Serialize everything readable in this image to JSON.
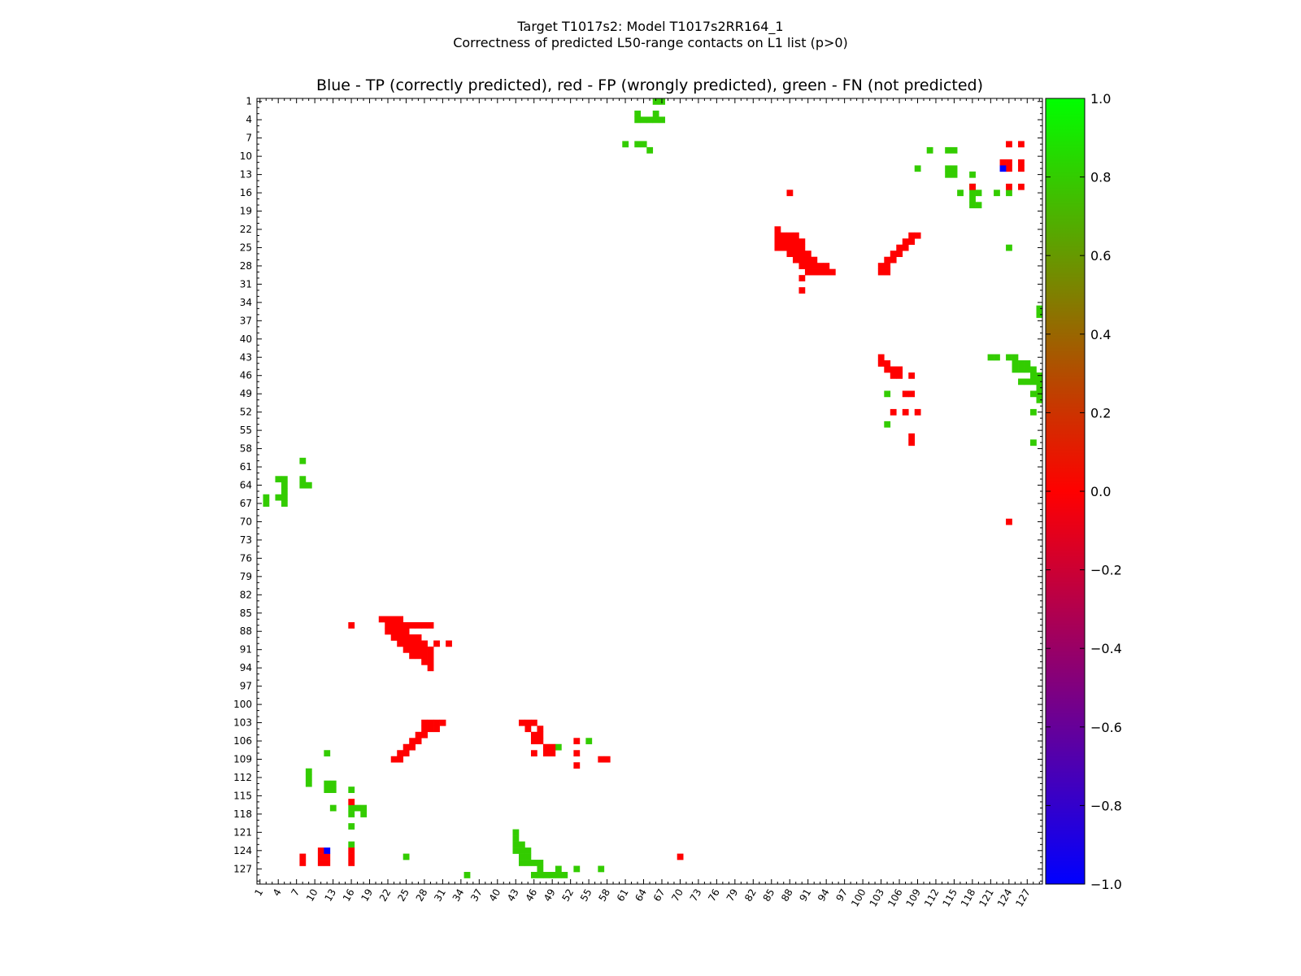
{
  "figure": {
    "title_line1": "Target T1017s2: Model T1017s2RR164_1",
    "title_line2": "Correctness of predicted L50-range contacts on L1 list (p>0)",
    "subtitle": "Blue - TP (correctly predicted), red - FP (wrongly predicted), green - FN (not predicted)"
  },
  "chart_data": {
    "type": "heatmap",
    "title": "Blue - TP (correctly predicted), red - FP (wrongly predicted), green - FN (not predicted)",
    "xlabel": "",
    "ylabel": "",
    "xlim": [
      0.5,
      129.5
    ],
    "ylim": [
      0.5,
      129.5
    ],
    "y_inverted": true,
    "x_tick_labels": [
      "1",
      "4",
      "7",
      "10",
      "13",
      "16",
      "19",
      "22",
      "25",
      "28",
      "31",
      "34",
      "37",
      "40",
      "43",
      "46",
      "49",
      "52",
      "55",
      "58",
      "61",
      "64",
      "67",
      "70",
      "73",
      "76",
      "79",
      "82",
      "85",
      "88",
      "91",
      "94",
      "97",
      "100",
      "103",
      "106",
      "109",
      "112",
      "115",
      "118",
      "121",
      "124",
      "127"
    ],
    "y_tick_labels": [
      "1",
      "4",
      "7",
      "10",
      "13",
      "16",
      "19",
      "22",
      "25",
      "28",
      "31",
      "34",
      "37",
      "40",
      "43",
      "46",
      "49",
      "52",
      "55",
      "58",
      "61",
      "64",
      "67",
      "70",
      "73",
      "76",
      "79",
      "82",
      "85",
      "88",
      "91",
      "94",
      "97",
      "100",
      "103",
      "106",
      "109",
      "112",
      "115",
      "118",
      "121",
      "124",
      "127"
    ],
    "colorbar": {
      "range": [
        -1.0,
        1.0
      ],
      "tick_labels": [
        "1.0",
        "0.8",
        "0.6",
        "0.4",
        "0.2",
        "0.0",
        "−0.2",
        "−0.4",
        "−0.6",
        "−0.8",
        "−1.0"
      ],
      "colormap": "brg",
      "color_bottom": "#0000ff",
      "color_middle": "#ff0000",
      "color_top": "#00ff00"
    },
    "categories": {
      "TP": {
        "value": -1.0,
        "color": "#0000ff"
      },
      "FP": {
        "value": 0.0,
        "color": "#ff0000"
      },
      "FN": {
        "value": 0.7,
        "color": "#33cc00"
      }
    },
    "cells": {
      "FP": [
        [
          87,
          16
        ],
        [
          87,
          27
        ],
        [
          87,
          28
        ],
        [
          87,
          29
        ],
        [
          88,
          22
        ],
        [
          88,
          23
        ],
        [
          88,
          24
        ],
        [
          88,
          25
        ],
        [
          89,
          23
        ],
        [
          89,
          24
        ],
        [
          89,
          25
        ],
        [
          89,
          26
        ],
        [
          89,
          27
        ],
        [
          90,
          24
        ],
        [
          90,
          25
        ],
        [
          90,
          26
        ],
        [
          90,
          27
        ],
        [
          90,
          28
        ],
        [
          90,
          30
        ],
        [
          90,
          32
        ],
        [
          91,
          25
        ],
        [
          91,
          26
        ],
        [
          91,
          27
        ],
        [
          91,
          28
        ],
        [
          91,
          29
        ],
        [
          92,
          26
        ],
        [
          92,
          27
        ],
        [
          92,
          28
        ],
        [
          92,
          29
        ],
        [
          93,
          28
        ],
        [
          93,
          29
        ],
        [
          94,
          29
        ],
        [
          103,
          28
        ],
        [
          103,
          29
        ],
        [
          103,
          30
        ],
        [
          103,
          31
        ],
        [
          104,
          28
        ],
        [
          104,
          29
        ],
        [
          104,
          30
        ],
        [
          105,
          27
        ],
        [
          105,
          28
        ],
        [
          106,
          26
        ],
        [
          106,
          27
        ],
        [
          107,
          25
        ],
        [
          107,
          26
        ],
        [
          108,
          24
        ],
        [
          108,
          25
        ],
        [
          109,
          23
        ],
        [
          109,
          24
        ],
        [
          116,
          16
        ],
        [
          124,
          11
        ],
        [
          124,
          16
        ],
        [
          125,
          8
        ],
        [
          125,
          11
        ],
        [
          125,
          12
        ],
        [
          125,
          16
        ],
        [
          126,
          8
        ],
        [
          126,
          11
        ],
        [
          126,
          12
        ],
        [
          126,
          16
        ],
        [
          103,
          44
        ],
        [
          103,
          45
        ],
        [
          103,
          46
        ],
        [
          104,
          45
        ],
        [
          104,
          47
        ],
        [
          105,
          46
        ],
        [
          105,
          47
        ],
        [
          106,
          46
        ],
        [
          106,
          47
        ],
        [
          106,
          53
        ],
        [
          107,
          48
        ],
        [
          108,
          48
        ],
        [
          108,
          53
        ],
        [
          109,
          57
        ],
        [
          109,
          58
        ],
        [
          110,
          53
        ],
        [
          86,
          21
        ],
        [
          86,
          22
        ],
        [
          86,
          23
        ],
        [
          86,
          24
        ],
        [
          87,
          22
        ],
        [
          87,
          23
        ],
        [
          87,
          24
        ],
        [
          87,
          25
        ],
        [
          87,
          26
        ],
        [
          107,
          49
        ],
        [
          108,
          49
        ],
        [
          108,
          46
        ],
        [
          125,
          70
        ],
        [
          8,
          124
        ],
        [
          8,
          126
        ],
        [
          11,
          123
        ],
        [
          11,
          124
        ],
        [
          11,
          126
        ],
        [
          12,
          124
        ],
        [
          12,
          126
        ],
        [
          15,
          118
        ],
        [
          15,
          124
        ],
        [
          15,
          126
        ],
        [
          16,
          88
        ],
        [
          22,
          86
        ],
        [
          23,
          86
        ],
        [
          24,
          86
        ],
        [
          25,
          86
        ],
        [
          23,
          87
        ],
        [
          23,
          88
        ],
        [
          23,
          89
        ],
        [
          24,
          87
        ],
        [
          24,
          88
        ],
        [
          24,
          89
        ],
        [
          24,
          90
        ],
        [
          25,
          87
        ],
        [
          25,
          88
        ],
        [
          25,
          89
        ],
        [
          25,
          90
        ],
        [
          26,
          88
        ],
        [
          26,
          89
        ],
        [
          26,
          90
        ],
        [
          26,
          91
        ],
        [
          27,
          89
        ],
        [
          27,
          90
        ],
        [
          27,
          91
        ],
        [
          27,
          92
        ],
        [
          28,
          90
        ],
        [
          28,
          91
        ],
        [
          28,
          92
        ],
        [
          28,
          93
        ],
        [
          28,
          94
        ],
        [
          29,
          91
        ],
        [
          29,
          92
        ],
        [
          29,
          93
        ],
        [
          29,
          94
        ],
        [
          29,
          95
        ],
        [
          30,
          90
        ],
        [
          32,
          90
        ],
        [
          23,
          109
        ],
        [
          23,
          108
        ],
        [
          24,
          107
        ],
        [
          24,
          108
        ],
        [
          25,
          106
        ],
        [
          25,
          107
        ],
        [
          26,
          105
        ],
        [
          26,
          106
        ],
        [
          27,
          104
        ],
        [
          27,
          105
        ],
        [
          28,
          103
        ],
        [
          28,
          104
        ],
        [
          29,
          103
        ],
        [
          29,
          104
        ],
        [
          43,
          103
        ],
        [
          44,
          103
        ],
        [
          44,
          104
        ],
        [
          45,
          104
        ],
        [
          45,
          105
        ],
        [
          45,
          106
        ],
        [
          46,
          105
        ],
        [
          46,
          106
        ],
        [
          46,
          108
        ],
        [
          49,
          107
        ],
        [
          49,
          108
        ],
        [
          52,
          105
        ],
        [
          52,
          107
        ],
        [
          52,
          109
        ],
        [
          56,
          108
        ],
        [
          57,
          108
        ],
        [
          70,
          124
        ]
      ],
      "TP": [
        [
          124,
          12
        ],
        [
          12,
          123
        ]
      ],
      "FN": [
        [
          1,
          66
        ],
        [
          1,
          67
        ],
        [
          3,
          63
        ],
        [
          3,
          66
        ],
        [
          4,
          63
        ],
        [
          4,
          64
        ],
        [
          4,
          65
        ],
        [
          4,
          66
        ],
        [
          4,
          67
        ],
        [
          8,
          61
        ],
        [
          8,
          63
        ],
        [
          8,
          64
        ],
        [
          9,
          65
        ],
        [
          9,
          111
        ],
        [
          9,
          114
        ],
        [
          9,
          115
        ],
        [
          12,
          109
        ],
        [
          12,
          114
        ],
        [
          12,
          115
        ],
        [
          13,
          114
        ],
        [
          13,
          115
        ],
        [
          13,
          118
        ],
        [
          15,
          118
        ],
        [
          16,
          116
        ],
        [
          16,
          118
        ],
        [
          16,
          119
        ],
        [
          16,
          122
        ],
        [
          16,
          124
        ],
        [
          17,
          118
        ],
        [
          18,
          118
        ],
        [
          18,
          119
        ],
        [
          25,
          124
        ],
        [
          35,
          129
        ],
        [
          36,
          129
        ],
        [
          43,
          121
        ],
        [
          43,
          122
        ],
        [
          43,
          124
        ],
        [
          43,
          125
        ],
        [
          44,
          125
        ],
        [
          44,
          126
        ],
        [
          44,
          127
        ],
        [
          45,
          125
        ],
        [
          45,
          126
        ],
        [
          45,
          127
        ],
        [
          45,
          128
        ],
        [
          46,
          128
        ],
        [
          46,
          129
        ],
        [
          47,
          126
        ],
        [
          47,
          127
        ],
        [
          47,
          128
        ],
        [
          47,
          129
        ],
        [
          48,
          129
        ],
        [
          49,
          104
        ],
        [
          49,
          128
        ],
        [
          49,
          129
        ],
        [
          50,
          129
        ],
        [
          52,
          128
        ],
        [
          54,
          104
        ],
        [
          57,
          128
        ],
        [
          60,
          8
        ],
        [
          63,
          4
        ],
        [
          63,
          5
        ],
        [
          63,
          8
        ],
        [
          64,
          5
        ],
        [
          64,
          8
        ],
        [
          64,
          9
        ],
        [
          65,
          5
        ],
        [
          66,
          2
        ],
        [
          66,
          4
        ],
        [
          66,
          5
        ],
        [
          67,
          2
        ],
        [
          67,
          5
        ],
        [
          108,
          12
        ],
        [
          111,
          9
        ],
        [
          112,
          9
        ],
        [
          113,
          9
        ],
        [
          113,
          12
        ],
        [
          113,
          13
        ],
        [
          114,
          12
        ],
        [
          114,
          13
        ],
        [
          114,
          16
        ],
        [
          117,
          13
        ],
        [
          117,
          16
        ],
        [
          117,
          17
        ],
        [
          117,
          18
        ],
        [
          118,
          16
        ],
        [
          118,
          18
        ],
        [
          120,
          16
        ],
        [
          121,
          43
        ],
        [
          122,
          43
        ],
        [
          123,
          43
        ],
        [
          123,
          44
        ],
        [
          123,
          16
        ],
        [
          124,
          43
        ],
        [
          124,
          44
        ],
        [
          124,
          45
        ],
        [
          125,
          44
        ],
        [
          125,
          45
        ],
        [
          125,
          25
        ],
        [
          126,
          44
        ],
        [
          126,
          45
        ],
        [
          126,
          46
        ],
        [
          126,
          47
        ],
        [
          127,
          47
        ],
        [
          127,
          50
        ],
        [
          127,
          53
        ],
        [
          127,
          57
        ],
        [
          128,
          46
        ],
        [
          128,
          47
        ],
        [
          128,
          48
        ],
        [
          128,
          49
        ],
        [
          128,
          50
        ],
        [
          128,
          51
        ],
        [
          128,
          35
        ],
        [
          107,
          50
        ],
        [
          106,
          55
        ]
      ]
    }
  }
}
